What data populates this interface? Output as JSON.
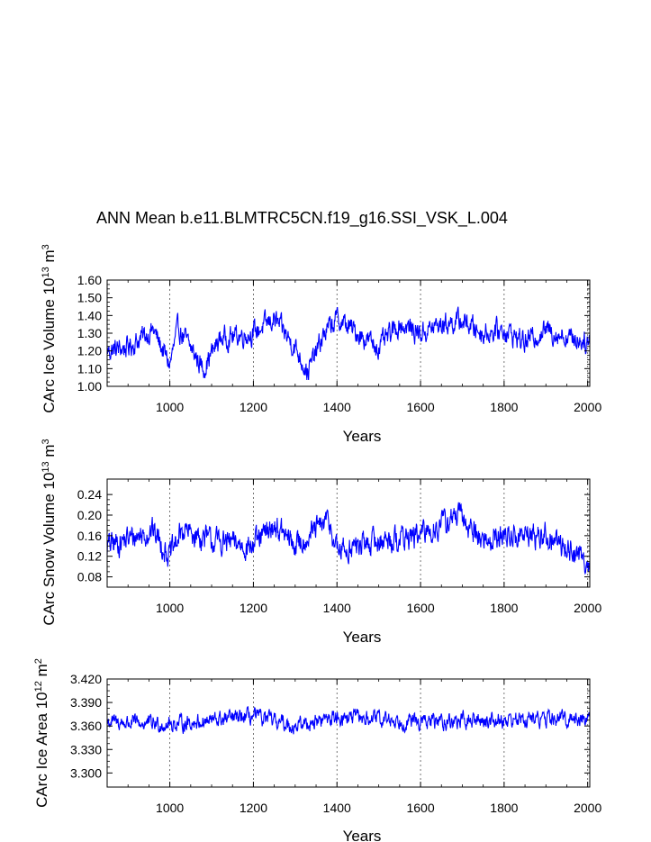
{
  "title": "ANN Mean b.e11.BLMTRC5CN.f19_g16.SSI_VSK_L.004",
  "line_color": "#0000ff",
  "chart_data": [
    {
      "type": "line",
      "series_name": "CArc Ice Volume",
      "ylabel_main": "CArc Ice Volume 10",
      "ylabel_exp": "13",
      "ylabel_unit": " m",
      "ylabel_unit_exp": "3",
      "xlabel": "Years",
      "xlim": [
        850,
        2005
      ],
      "ylim": [
        1.0,
        1.6
      ],
      "xticks": [
        1000,
        1200,
        1400,
        1600,
        1800,
        2000
      ],
      "yticks": [
        1.0,
        1.1,
        1.2,
        1.3,
        1.4,
        1.5,
        1.6
      ],
      "ytick_labels": [
        "1.00",
        "1.10",
        "1.20",
        "1.30",
        "1.40",
        "1.50",
        "1.60"
      ],
      "base": 1.27,
      "noise": 0.055,
      "anchors": [
        [
          850,
          1.2
        ],
        [
          900,
          1.22
        ],
        [
          960,
          1.32
        ],
        [
          1000,
          1.12
        ],
        [
          1020,
          1.33
        ],
        [
          1080,
          1.1
        ],
        [
          1120,
          1.27
        ],
        [
          1200,
          1.3
        ],
        [
          1250,
          1.38
        ],
        [
          1300,
          1.22
        ],
        [
          1330,
          1.08
        ],
        [
          1370,
          1.3
        ],
        [
          1400,
          1.38
        ],
        [
          1450,
          1.3
        ],
        [
          1500,
          1.22
        ],
        [
          1550,
          1.35
        ],
        [
          1600,
          1.3
        ],
        [
          1650,
          1.35
        ],
        [
          1700,
          1.37
        ],
        [
          1750,
          1.3
        ],
        [
          1800,
          1.32
        ],
        [
          1850,
          1.25
        ],
        [
          1900,
          1.32
        ],
        [
          1950,
          1.28
        ],
        [
          2005,
          1.25
        ]
      ]
    },
    {
      "type": "line",
      "series_name": "CArc Snow Volume",
      "ylabel_main": "CArc Snow Volume 10",
      "ylabel_exp": "13",
      "ylabel_unit": " m",
      "ylabel_unit_exp": "3",
      "xlabel": "Years",
      "xlim": [
        850,
        2005
      ],
      "ylim": [
        0.06,
        0.27
      ],
      "xticks": [
        1000,
        1200,
        1400,
        1600,
        1800,
        2000
      ],
      "yticks": [
        0.08,
        0.12,
        0.16,
        0.2,
        0.24
      ],
      "ytick_labels": [
        "0.08",
        "0.12",
        "0.16",
        "0.20",
        "0.24"
      ],
      "base": 0.15,
      "noise": 0.022,
      "anchors": [
        [
          850,
          0.14
        ],
        [
          960,
          0.17
        ],
        [
          1000,
          0.12
        ],
        [
          1030,
          0.17
        ],
        [
          1100,
          0.15
        ],
        [
          1200,
          0.14
        ],
        [
          1250,
          0.18
        ],
        [
          1300,
          0.14
        ],
        [
          1380,
          0.19
        ],
        [
          1400,
          0.13
        ],
        [
          1500,
          0.15
        ],
        [
          1600,
          0.16
        ],
        [
          1690,
          0.2
        ],
        [
          1750,
          0.15
        ],
        [
          1800,
          0.16
        ],
        [
          1900,
          0.16
        ],
        [
          1960,
          0.13
        ],
        [
          2005,
          0.11
        ]
      ]
    },
    {
      "type": "line",
      "series_name": "CArc Ice Area",
      "ylabel_main": "CArc Ice Area 10",
      "ylabel_exp": "12",
      "ylabel_unit": " m",
      "ylabel_unit_exp": "2",
      "xlabel": "Years",
      "xlim": [
        850,
        2005
      ],
      "ylim": [
        3.282,
        3.42
      ],
      "xticks": [
        1000,
        1200,
        1400,
        1600,
        1800,
        2000
      ],
      "yticks": [
        3.3,
        3.33,
        3.36,
        3.39,
        3.42
      ],
      "ytick_labels": [
        "3.300",
        "3.330",
        "3.360",
        "3.390",
        "3.420"
      ],
      "base": 3.367,
      "noise": 0.009,
      "anchors": [
        [
          850,
          3.365
        ],
        [
          1000,
          3.362
        ],
        [
          1200,
          3.372
        ],
        [
          1300,
          3.36
        ],
        [
          1400,
          3.372
        ],
        [
          1600,
          3.365
        ],
        [
          1800,
          3.368
        ],
        [
          2005,
          3.37
        ]
      ]
    }
  ]
}
